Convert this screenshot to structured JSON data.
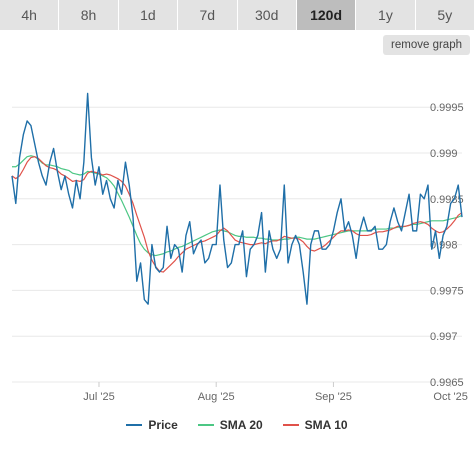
{
  "tabs": [
    {
      "label": "4h",
      "active": false
    },
    {
      "label": "8h",
      "active": false
    },
    {
      "label": "1d",
      "active": false
    },
    {
      "label": "7d",
      "active": false
    },
    {
      "label": "30d",
      "active": false
    },
    {
      "label": "120d",
      "active": true
    },
    {
      "label": "1y",
      "active": false
    },
    {
      "label": "5y",
      "active": false
    }
  ],
  "remove_graph_label": "remove graph",
  "colors": {
    "price": "#1f6fa8",
    "sma20": "#4cc784",
    "sma10": "#e0524a",
    "grid": "#e8e8e8"
  },
  "chart_data": {
    "type": "line",
    "ylim": [
      0.9965,
      0.99995
    ],
    "y_ticks": [
      {
        "value": 0.9965,
        "label": "0.9965"
      },
      {
        "value": 0.997,
        "label": "0.997"
      },
      {
        "value": 0.9975,
        "label": "0.9975"
      },
      {
        "value": 0.998,
        "label": "0.998"
      },
      {
        "value": 0.9985,
        "label": "0.9985"
      },
      {
        "value": 0.999,
        "label": "0.999"
      },
      {
        "value": 0.9995,
        "label": "0.9995"
      }
    ],
    "x_ticks": [
      {
        "index": 23,
        "label": "Jul '25"
      },
      {
        "index": 54,
        "label": "Aug '25"
      },
      {
        "index": 85,
        "label": "Sep '25"
      },
      {
        "index": 116,
        "label": "Oct '25"
      }
    ],
    "x_count": 120,
    "series": [
      {
        "name": "Price",
        "key": "price",
        "values": [
          0.99875,
          0.99845,
          0.99895,
          0.9992,
          0.99935,
          0.9993,
          0.9991,
          0.9989,
          0.99875,
          0.99865,
          0.9989,
          0.99905,
          0.9988,
          0.9986,
          0.99875,
          0.99855,
          0.9984,
          0.9987,
          0.9985,
          0.9989,
          0.99965,
          0.99895,
          0.99865,
          0.99885,
          0.99855,
          0.9987,
          0.9985,
          0.9984,
          0.9987,
          0.99855,
          0.9989,
          0.99865,
          0.9983,
          0.9976,
          0.9978,
          0.9974,
          0.99735,
          0.998,
          0.99775,
          0.9977,
          0.99775,
          0.9982,
          0.99785,
          0.998,
          0.99795,
          0.9977,
          0.9981,
          0.99825,
          0.9979,
          0.998,
          0.99805,
          0.9978,
          0.99785,
          0.998,
          0.998,
          0.99865,
          0.99805,
          0.99775,
          0.9978,
          0.998,
          0.998,
          0.99815,
          0.99765,
          0.99795,
          0.998,
          0.9981,
          0.99835,
          0.9977,
          0.99815,
          0.99795,
          0.99785,
          0.99795,
          0.99865,
          0.9978,
          0.998,
          0.9981,
          0.998,
          0.9977,
          0.99735,
          0.998,
          0.99815,
          0.99815,
          0.99795,
          0.99795,
          0.998,
          0.99815,
          0.99835,
          0.9985,
          0.99815,
          0.99825,
          0.9981,
          0.99785,
          0.99815,
          0.9983,
          0.99815,
          0.99815,
          0.9982,
          0.99795,
          0.99795,
          0.998,
          0.99825,
          0.9984,
          0.99825,
          0.99815,
          0.99835,
          0.99855,
          0.99815,
          0.99815,
          0.99855,
          0.9985,
          0.99865,
          0.99795,
          0.99815,
          0.99785,
          0.9981,
          0.9982,
          0.99845,
          0.9985,
          0.99865,
          0.9983
        ]
      },
      {
        "name": "SMA 20",
        "key": "sma20",
        "values": [
          0.99885,
          0.99885,
          0.99888,
          0.99892,
          0.99896,
          0.99897,
          0.99896,
          0.99893,
          0.99889,
          0.99887,
          0.99887,
          0.99886,
          0.99885,
          0.99883,
          0.99882,
          0.99881,
          0.99878,
          0.99877,
          0.99876,
          0.99877,
          0.9988,
          0.99879,
          0.99878,
          0.99877,
          0.99875,
          0.99873,
          0.99869,
          0.99864,
          0.99856,
          0.99848,
          0.99839,
          0.9983,
          0.9982,
          0.9981,
          0.99801,
          0.99795,
          0.99791,
          0.99789,
          0.99788,
          0.99789,
          0.9979,
          0.99792,
          0.99793,
          0.99795,
          0.99797,
          0.99798,
          0.998,
          0.99802,
          0.99804,
          0.99806,
          0.99808,
          0.9981,
          0.99812,
          0.99814,
          0.99815,
          0.99816,
          0.99815,
          0.99814,
          0.99812,
          0.9981,
          0.99809,
          0.99809,
          0.99808,
          0.99808,
          0.99808,
          0.99807,
          0.99807,
          0.99806,
          0.99806,
          0.99805,
          0.99805,
          0.99805,
          0.99806,
          0.99806,
          0.99807,
          0.99808,
          0.99808,
          0.99807,
          0.99806,
          0.99806,
          0.99806,
          0.99807,
          0.99808,
          0.99809,
          0.9981,
          0.99811,
          0.99812,
          0.99813,
          0.99814,
          0.99815,
          0.99815,
          0.99815,
          0.99815,
          0.99815,
          0.99815,
          0.99816,
          0.99817,
          0.99817,
          0.99817,
          0.99817,
          0.99818,
          0.99818,
          0.99819,
          0.99819,
          0.9982,
          0.99821,
          0.99822,
          0.99822,
          0.99823,
          0.99824,
          0.99825,
          0.99826,
          0.99826,
          0.99826,
          0.99826,
          0.99827,
          0.99828,
          0.99829,
          0.9983,
          0.99832
        ]
      },
      {
        "name": "SMA 10",
        "key": "sma10",
        "values": [
          0.99875,
          0.99872,
          0.99875,
          0.99882,
          0.9989,
          0.99895,
          0.99896,
          0.99894,
          0.9989,
          0.99886,
          0.99884,
          0.99883,
          0.99881,
          0.99877,
          0.99875,
          0.99872,
          0.99869,
          0.9987,
          0.99869,
          0.99871,
          0.99878,
          0.9988,
          0.99879,
          0.99878,
          0.99876,
          0.99877,
          0.99876,
          0.99874,
          0.99872,
          0.99869,
          0.99864,
          0.99855,
          0.99845,
          0.99832,
          0.9982,
          0.99808,
          0.99793,
          0.99783,
          0.99776,
          0.99771,
          0.9977,
          0.99774,
          0.99778,
          0.99782,
          0.99787,
          0.99791,
          0.99795,
          0.99797,
          0.99799,
          0.99801,
          0.99803,
          0.99804,
          0.99806,
          0.99808,
          0.9981,
          0.99815,
          0.99818,
          0.99815,
          0.9981,
          0.99805,
          0.99803,
          0.99802,
          0.99801,
          0.998,
          0.998,
          0.99801,
          0.99802,
          0.99801,
          0.99803,
          0.99804,
          0.99804,
          0.99806,
          0.99809,
          0.99808,
          0.99807,
          0.99807,
          0.99806,
          0.99803,
          0.99798,
          0.99794,
          0.99793,
          0.99795,
          0.99797,
          0.998,
          0.99804,
          0.99808,
          0.99812,
          0.99815,
          0.99815,
          0.99816,
          0.99815,
          0.99812,
          0.9981,
          0.9981,
          0.9981,
          0.99811,
          0.99813,
          0.99814,
          0.99814,
          0.99815,
          0.99816,
          0.99818,
          0.9982,
          0.9982,
          0.9982,
          0.99821,
          0.99823,
          0.99824,
          0.99825,
          0.99824,
          0.99822,
          0.99818,
          0.99815,
          0.99813,
          0.99814,
          0.99817,
          0.99821,
          0.99826,
          0.99832,
          0.99835
        ]
      }
    ]
  }
}
